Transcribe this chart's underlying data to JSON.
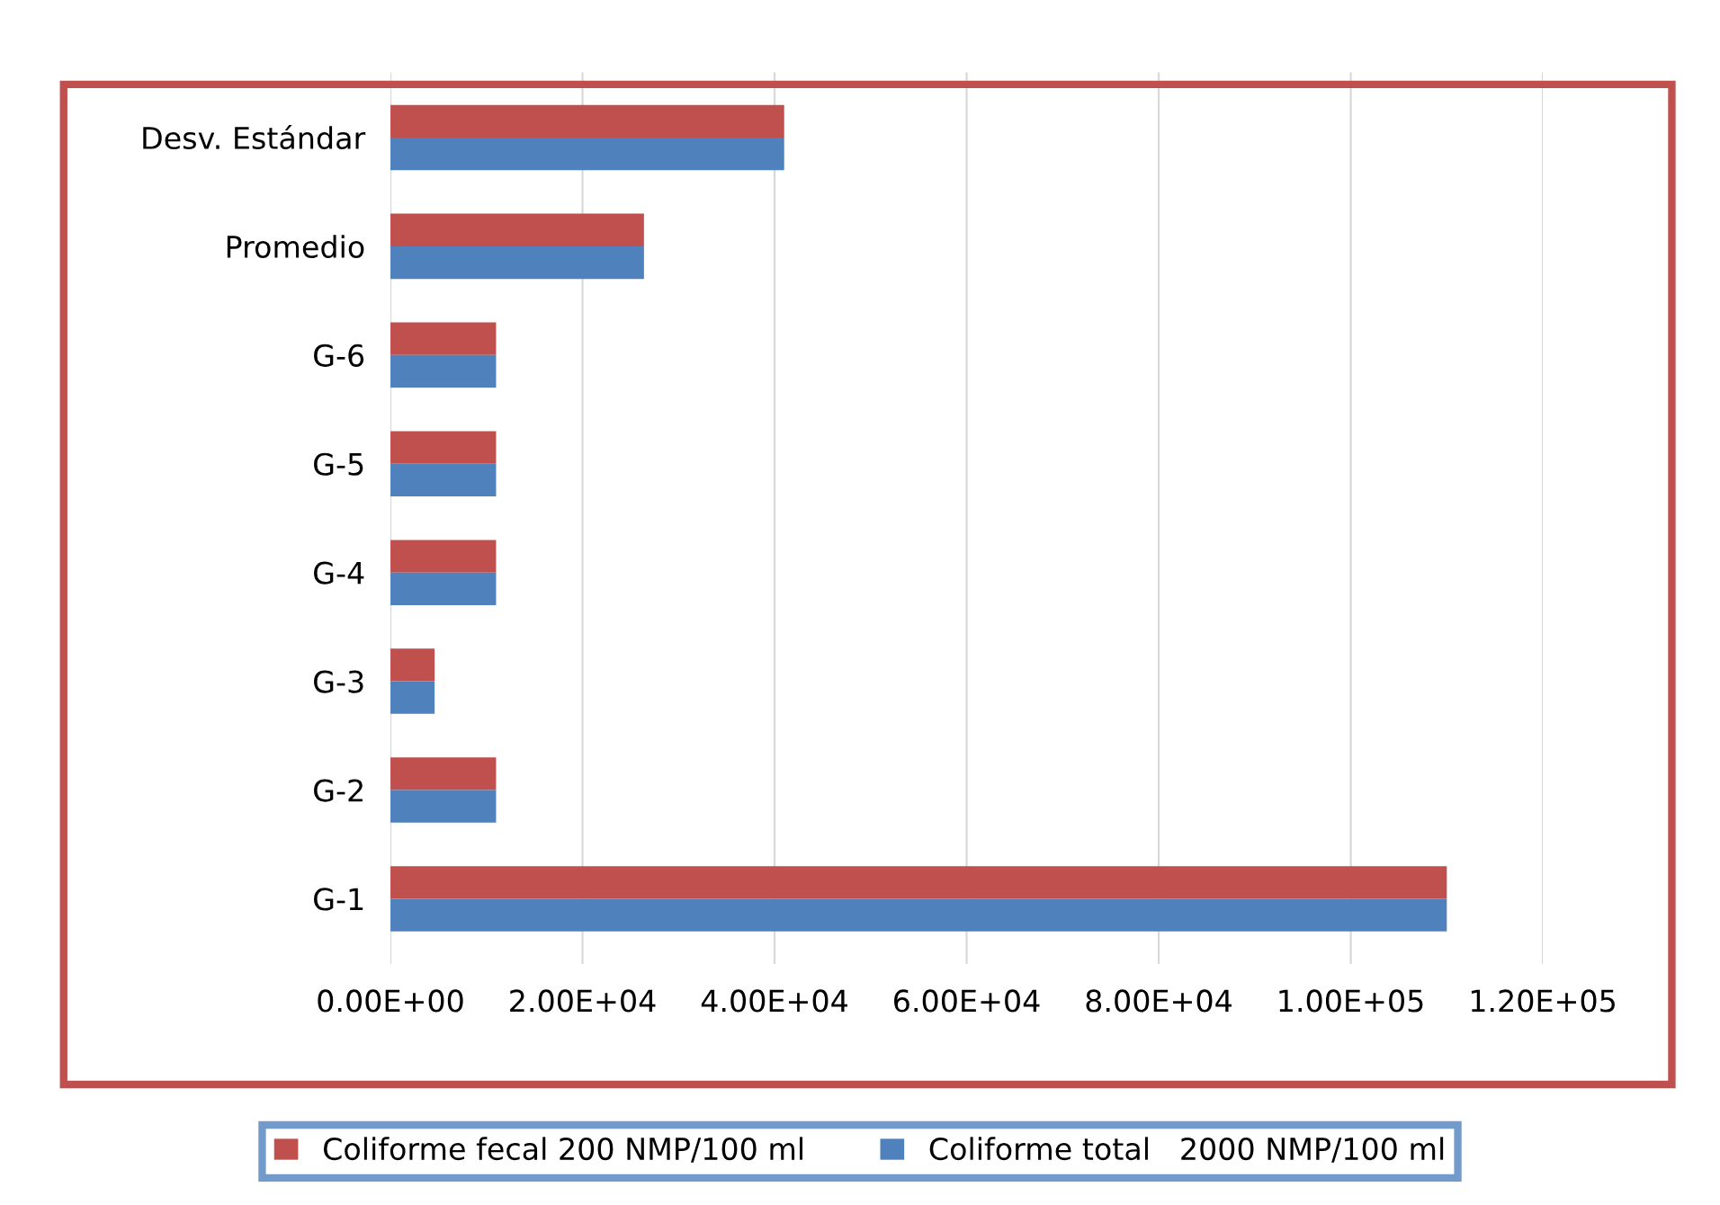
{
  "chart_data": {
    "type": "bar",
    "orientation": "horizontal",
    "categories": [
      "Desv. Estándar",
      "Promedio",
      "G-6",
      "G-5",
      "G-4",
      "G-3",
      "G-2",
      "G-1"
    ],
    "series": [
      {
        "name": "Coliforme fecal 200 NMP/100 ml",
        "color": "#c0504d",
        "values": [
          41000,
          26400,
          11000,
          11000,
          11000,
          4600,
          11000,
          110000
        ]
      },
      {
        "name": "Coliforme total   2000 NMP/100 ml",
        "color": "#4f81bd",
        "values": [
          41000,
          26400,
          11000,
          11000,
          11000,
          4600,
          11000,
          110000
        ]
      }
    ],
    "xlim": [
      0,
      120000
    ],
    "xticks": [
      {
        "value": 0,
        "label": "0.00E+00"
      },
      {
        "value": 20000,
        "label": "2.00E+04"
      },
      {
        "value": 40000,
        "label": "4.00E+04"
      },
      {
        "value": 60000,
        "label": "6.00E+04"
      },
      {
        "value": 80000,
        "label": "8.00E+04"
      },
      {
        "value": 100000,
        "label": "1.00E+05"
      },
      {
        "value": 120000,
        "label": "1.20E+05"
      }
    ],
    "grid": "x",
    "legend": "bottom"
  }
}
